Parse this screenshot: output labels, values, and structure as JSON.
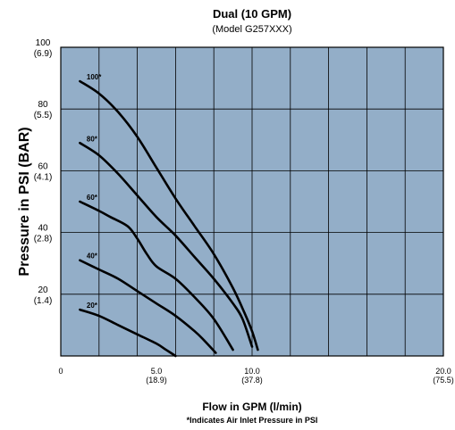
{
  "chart_data": {
    "type": "line",
    "title": "Dual (10 GPM)",
    "subtitle": "(Model G257XXX)",
    "xlabel": "Flow in GPM (l/min)",
    "ylabel": "Pressure in PSI (BAR)",
    "footnote": "*Indicates Air Inlet Pressure in PSI",
    "xlim": [
      0,
      20
    ],
    "ylim": [
      0,
      100
    ],
    "x_ticks": [
      {
        "value": 0,
        "label": "0",
        "sub": ""
      },
      {
        "value": 5,
        "label": "5.0",
        "sub": "(18.9)"
      },
      {
        "value": 10,
        "label": "10.0",
        "sub": "(37.8)"
      },
      {
        "value": 20,
        "label": "20.0",
        "sub": "(75.5)"
      }
    ],
    "y_ticks": [
      {
        "value": 20,
        "label": "20",
        "sub": "(1.4)"
      },
      {
        "value": 40,
        "label": "40",
        "sub": "(2.8)"
      },
      {
        "value": 60,
        "label": "60",
        "sub": "(4.1)"
      },
      {
        "value": 80,
        "label": "80",
        "sub": "(5.5)"
      },
      {
        "value": 100,
        "label": "100",
        "sub": "(6.9)"
      }
    ],
    "grid": true,
    "plot_background": "#93aec8",
    "series": [
      {
        "name": "100*",
        "x": [
          1.0,
          2.0,
          3.0,
          4.0,
          5.0,
          6.0,
          7.0,
          8.0,
          9.0,
          9.6,
          10.0,
          10.3
        ],
        "y": [
          89,
          85,
          79,
          71,
          61,
          51,
          42,
          33,
          22,
          14,
          8,
          2
        ]
      },
      {
        "name": "80*",
        "x": [
          1.0,
          2.0,
          3.0,
          4.0,
          5.0,
          6.0,
          7.0,
          8.0,
          9.0,
          9.5,
          10.0
        ],
        "y": [
          69,
          65,
          59,
          52,
          45,
          39,
          32,
          25,
          17,
          12,
          3
        ]
      },
      {
        "name": "60*",
        "x": [
          1.0,
          2.0,
          2.6,
          3.5,
          4.0,
          4.5,
          5.0,
          6.0,
          7.0,
          8.0,
          9.0
        ],
        "y": [
          50,
          47,
          45,
          42,
          38,
          33,
          29,
          25,
          19,
          12,
          2
        ]
      },
      {
        "name": "40*",
        "x": [
          1.0,
          2.0,
          3.0,
          4.0,
          5.0,
          6.0,
          7.0,
          7.5,
          8.1
        ],
        "y": [
          31,
          28,
          25,
          21,
          17,
          13,
          8,
          5,
          1
        ]
      },
      {
        "name": "20*",
        "x": [
          1.0,
          2.0,
          3.0,
          4.0,
          5.0,
          5.5,
          6.0
        ],
        "y": [
          15,
          13,
          10,
          7,
          4,
          2,
          0
        ]
      }
    ]
  },
  "colors": {
    "plot_background": "#93aec8",
    "curve": "#000000",
    "grid": "#000000"
  }
}
